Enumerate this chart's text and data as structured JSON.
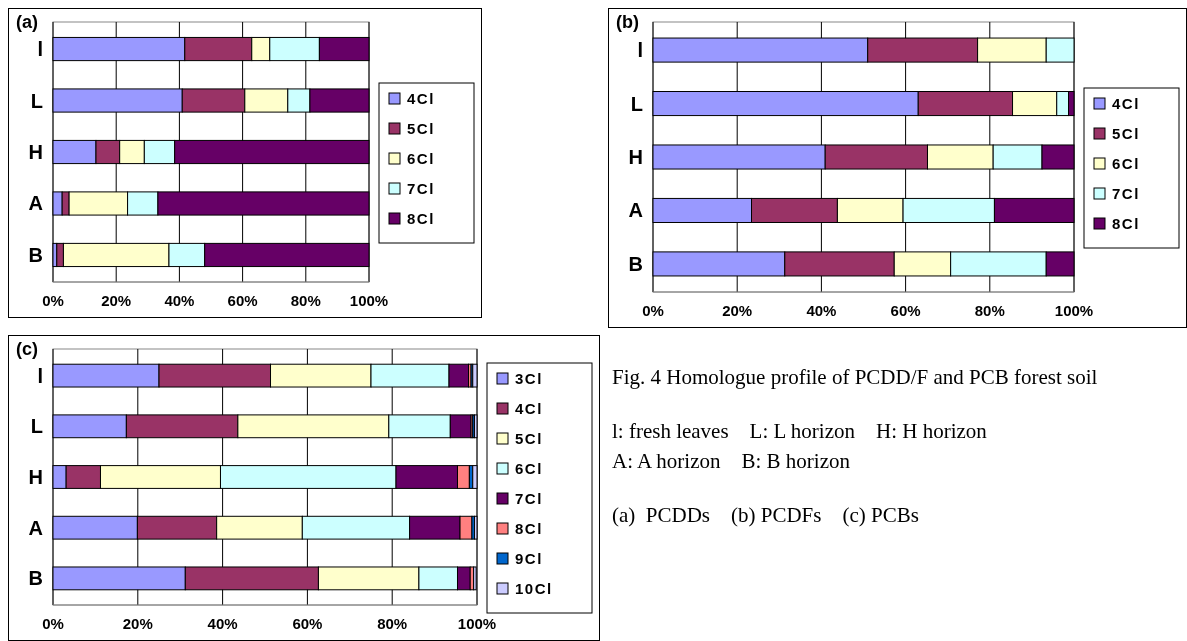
{
  "chart_data": [
    {
      "type": "bar",
      "title": "(a)",
      "orientation": "horizontal",
      "stacked": true,
      "categories": [
        "l",
        "L",
        "H",
        "A",
        "B"
      ],
      "xlim": [
        0,
        100
      ],
      "xticks": [
        {
          "value": 0,
          "label": "0%"
        },
        {
          "value": 20,
          "label": "20%"
        },
        {
          "value": 40,
          "label": "40%"
        },
        {
          "value": 60,
          "label": "60%"
        },
        {
          "value": 80,
          "label": "80%"
        },
        {
          "value": 100,
          "label": "100%"
        }
      ],
      "grid": "x",
      "legend": "right",
      "series": [
        {
          "name": "4Cl",
          "color": "#9999ff",
          "values": [
            41.7,
            40.9,
            13.6,
            2.9,
            1.2
          ]
        },
        {
          "name": "5Cl",
          "color": "#993366",
          "values": [
            21.2,
            19.8,
            7.5,
            2.2,
            2.1
          ]
        },
        {
          "name": "6Cl",
          "color": "#ffffcc",
          "values": [
            5.7,
            13.6,
            7.8,
            18.5,
            33.4
          ]
        },
        {
          "name": "7Cl",
          "color": "#ccffff",
          "values": [
            15.7,
            7.0,
            9.6,
            9.6,
            11.3
          ]
        },
        {
          "name": "8Cl",
          "color": "#660066",
          "values": [
            15.7,
            18.7,
            61.5,
            66.8,
            52.0
          ]
        }
      ]
    },
    {
      "type": "bar",
      "title": "(b)",
      "orientation": "horizontal",
      "stacked": true,
      "categories": [
        "l",
        "L",
        "H",
        "A",
        "B"
      ],
      "xlim": [
        0,
        100
      ],
      "xticks": [
        {
          "value": 0,
          "label": "0%"
        },
        {
          "value": 20,
          "label": "20%"
        },
        {
          "value": 40,
          "label": "40%"
        },
        {
          "value": 60,
          "label": "60%"
        },
        {
          "value": 80,
          "label": "80%"
        },
        {
          "value": 100,
          "label": "100%"
        }
      ],
      "grid": "x",
      "legend": "right",
      "series": [
        {
          "name": "4Cl",
          "color": "#9999ff",
          "values": [
            51.0,
            63.0,
            40.9,
            23.4,
            31.3
          ]
        },
        {
          "name": "5Cl",
          "color": "#993366",
          "values": [
            26.1,
            22.4,
            24.3,
            20.4,
            26.0
          ]
        },
        {
          "name": "6Cl",
          "color": "#ffffcc",
          "values": [
            16.3,
            10.5,
            15.6,
            15.6,
            13.4
          ]
        },
        {
          "name": "7Cl",
          "color": "#ccffff",
          "values": [
            6.6,
            2.8,
            11.6,
            21.7,
            22.7
          ]
        },
        {
          "name": "8Cl",
          "color": "#660066",
          "values": [
            0,
            1.3,
            7.6,
            18.9,
            6.6
          ]
        }
      ]
    },
    {
      "type": "bar",
      "title": "(c)",
      "orientation": "horizontal",
      "stacked": true,
      "categories": [
        "l",
        "L",
        "H",
        "A",
        "B"
      ],
      "xlim": [
        0,
        100
      ],
      "xticks": [
        {
          "value": 0,
          "label": "0%"
        },
        {
          "value": 20,
          "label": "20%"
        },
        {
          "value": 40,
          "label": "40%"
        },
        {
          "value": 60,
          "label": "60%"
        },
        {
          "value": 80,
          "label": "80%"
        },
        {
          "value": 100,
          "label": "100%"
        }
      ],
      "grid": "x",
      "legend": "right",
      "series": [
        {
          "name": "3Cl",
          "color": "#9999ff",
          "values": [
            25.0,
            17.3,
            3.1,
            19.9,
            31.2
          ]
        },
        {
          "name": "4Cl",
          "color": "#993366",
          "values": [
            26.3,
            26.3,
            8.1,
            18.7,
            31.4
          ]
        },
        {
          "name": "5Cl",
          "color": "#ffffcc",
          "values": [
            23.7,
            35.6,
            28.3,
            20.2,
            23.7
          ]
        },
        {
          "name": "6Cl",
          "color": "#ccffff",
          "values": [
            18.4,
            14.5,
            41.4,
            25.3,
            9.1
          ]
        },
        {
          "name": "7Cl",
          "color": "#660066",
          "values": [
            4.6,
            4.9,
            14.5,
            11.9,
            3.0
          ]
        },
        {
          "name": "8Cl",
          "color": "#ff8080",
          "values": [
            0.6,
            0.4,
            2.8,
            2.8,
            0.8
          ]
        },
        {
          "name": "9Cl",
          "color": "#0066cc",
          "values": [
            0.4,
            0.4,
            0.8,
            0.6,
            null
          ]
        },
        {
          "name": "10Cl",
          "color": "#ccccff",
          "values": [
            1.0,
            0.6,
            1.0,
            0.6,
            0.6
          ]
        }
      ]
    },
    {
      "type": "other",
      "title": "Fig. 4 Homologue profile of PCDD/F and PCB forest soil",
      "annotations": [
        "l: fresh leaves    L: L horizon    H: H horizon",
        "A: A horizon    B: B horizon",
        "(a)  PCDDs    (b) PCDFs    (c) PCBs"
      ]
    }
  ]
}
